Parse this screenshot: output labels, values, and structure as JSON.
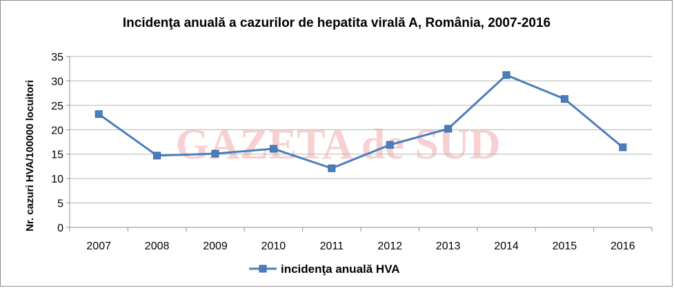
{
  "chart_data": {
    "type": "line",
    "title": "Incidenţa anuală a cazurilor de hepatita virală A, România, 2007-2016",
    "xlabel": "",
    "ylabel": "Nr. cazuri HVA/100000 locuitori",
    "categories": [
      "2007",
      "2008",
      "2009",
      "2010",
      "2011",
      "2012",
      "2013",
      "2014",
      "2015",
      "2016"
    ],
    "series": [
      {
        "name": "incidenţa anuală HVA",
        "values": [
          23.2,
          14.7,
          15.1,
          16.1,
          12.1,
          16.9,
          20.2,
          31.2,
          26.3,
          16.4
        ]
      }
    ],
    "ylim": [
      0,
      35
    ],
    "yticks": [
      "0",
      "5",
      "10",
      "15",
      "20",
      "25",
      "30",
      "35"
    ],
    "grid": true,
    "legend": "bottom",
    "color": "#4a7ebb",
    "watermark": "GAZETA de SUD"
  }
}
